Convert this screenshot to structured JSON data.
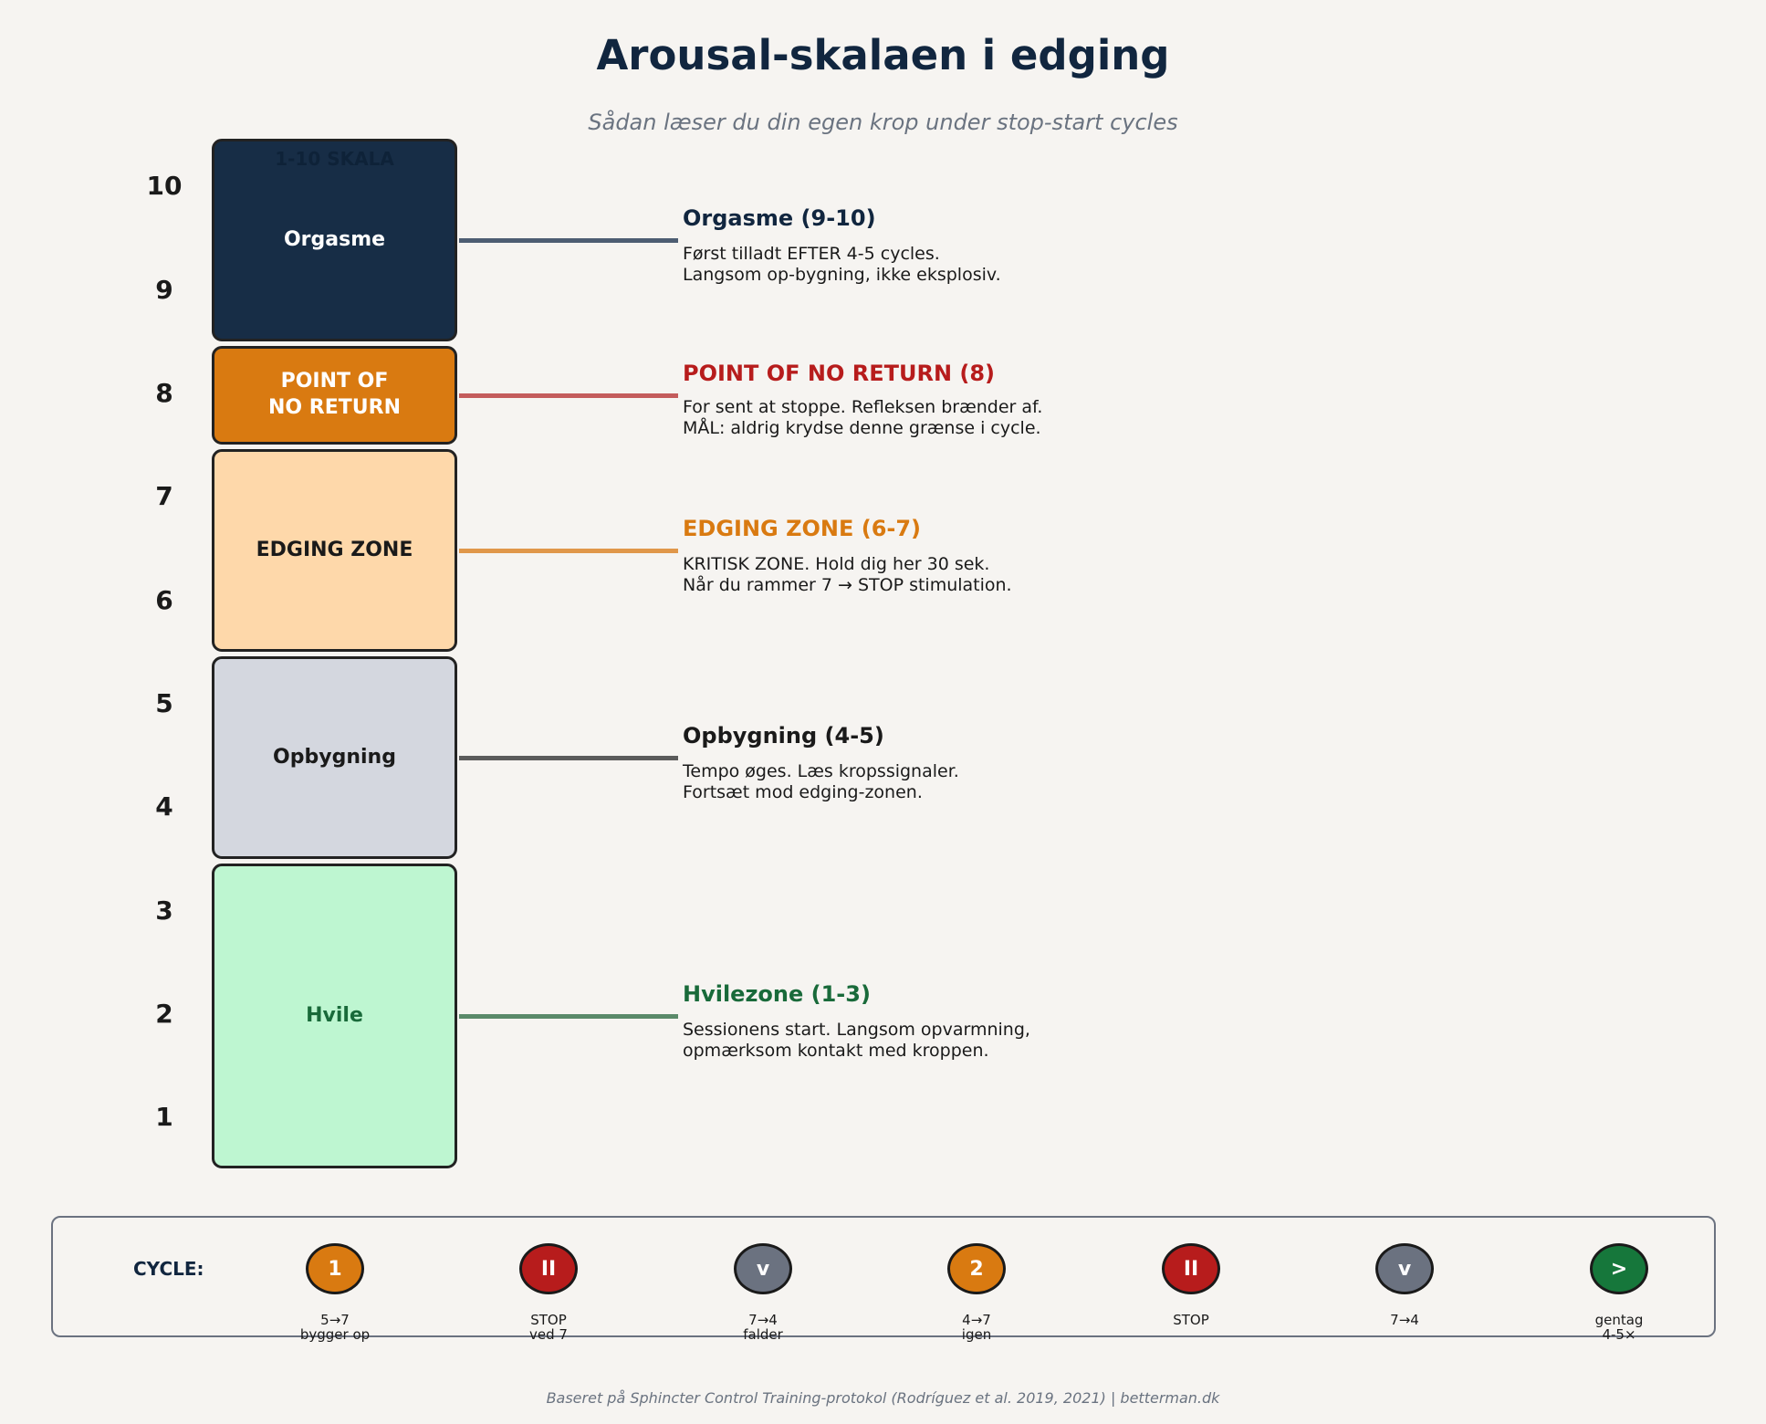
{
  "header": {
    "title": "Arousal-skalaen i edging",
    "subtitle": "Sådan læser du din egen krop under stop-start cycles"
  },
  "scale": {
    "heading": "1-10 SKALA",
    "numbers": [
      "10",
      "9",
      "8",
      "7",
      "6",
      "5",
      "4",
      "3",
      "2",
      "1"
    ]
  },
  "zones": [
    {
      "id": "orgasme",
      "label": "Orgasme",
      "fill": "#172d46",
      "text_color": "#ffffff",
      "line_color": "#4d5d72",
      "heading": "Orgasme (9-10)",
      "heading_color": "#11263f",
      "body": [
        "Først tilladt EFTER 4-5 cycles.",
        "Langsom op-bygning, ikke eksplosiv."
      ]
    },
    {
      "id": "point-of-no-return",
      "label": "POINT OF\nNO RETURN",
      "fill": "#d97a11",
      "text_color": "#ffffff",
      "line_color": "#c45c5c",
      "heading": "POINT OF NO RETURN (8)",
      "heading_color": "#b71c1c",
      "body": [
        "For sent at stoppe. Refleksen brænder af.",
        "MÅL: aldrig krydse denne grænse i cycle."
      ]
    },
    {
      "id": "edging-zone",
      "label": "EDGING ZONE",
      "fill": "#fed8aa",
      "text_color": "#1a1a1a",
      "line_color": "#e0974a",
      "heading": "EDGING ZONE (6-7)",
      "heading_color": "#d97a11",
      "body": [
        "KRITISK ZONE. Hold dig her 30 sek.",
        "Når du rammer 7 → STOP stimulation."
      ]
    },
    {
      "id": "opbygning",
      "label": "Opbygning",
      "fill": "#d4d7df",
      "text_color": "#1a1a1a",
      "line_color": "#5b5b5b",
      "heading": "Opbygning (4-5)",
      "heading_color": "#1a1a1a",
      "body": [
        "Tempo øges. Læs kropssignaler.",
        "Fortsæt mod edging-zonen."
      ]
    },
    {
      "id": "hvile",
      "label": "Hvile",
      "fill": "#bef6d1",
      "text_color": "#196a3a",
      "line_color": "#5a8a6a",
      "heading": "Hvilezone (1-3)",
      "heading_color": "#196a3a",
      "body": [
        "Sessionens start. Langsom opvarmning,",
        "opmærksom kontakt med kroppen."
      ]
    }
  ],
  "cycle": {
    "label": "CYCLE:",
    "steps": [
      {
        "symbol": "1",
        "color": "#d97a11",
        "caption": [
          "5→7",
          "bygger op"
        ]
      },
      {
        "symbol": "II",
        "color": "#b71c1c",
        "caption": [
          "STOP",
          "ved 7"
        ]
      },
      {
        "symbol": "v",
        "color": "#6b7280",
        "caption": [
          "7→4",
          "falder"
        ]
      },
      {
        "symbol": "2",
        "color": "#d97a11",
        "caption": [
          "4→7",
          "igen"
        ]
      },
      {
        "symbol": "II",
        "color": "#b71c1c",
        "caption": [
          "STOP"
        ]
      },
      {
        "symbol": "v",
        "color": "#6b7280",
        "caption": [
          "7→4"
        ]
      },
      {
        "symbol": ">",
        "color": "#16773b",
        "caption": [
          "gentag",
          "4-5×"
        ]
      }
    ]
  },
  "footer": "Baseret på Sphincter Control Training-protokol (Rodríguez et al. 2019, 2021) | betterman.dk"
}
